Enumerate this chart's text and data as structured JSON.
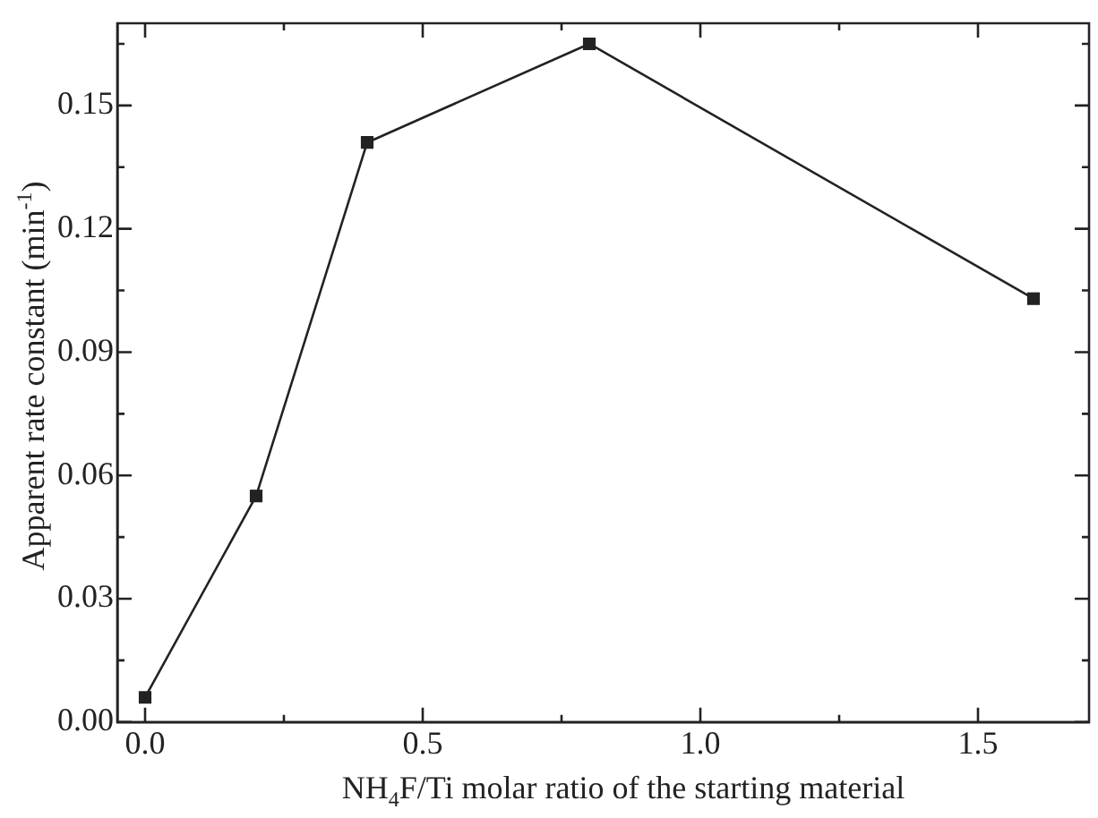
{
  "chart_data": {
    "type": "line",
    "xlabel": "NH$_{4}$F/Ti molar ratio of the starting material",
    "ylabel": "Apparent rate constant (min$^{-1}$)",
    "x": [
      0,
      0.2,
      0.4,
      0.8,
      1.6
    ],
    "series": [
      {
        "color": "#222222",
        "values": [
          0.006,
          0.055,
          0.141,
          0.165,
          0.103
        ]
      }
    ],
    "xlim": [
      -0.05,
      1.7
    ],
    "xticks": [
      {
        "value": 0,
        "label": "0.0"
      },
      {
        "value": 0.25,
        "label": null
      },
      {
        "value": 0.5,
        "label": "0.5"
      },
      {
        "value": 0.75,
        "label": null
      },
      {
        "value": 1,
        "label": "1.0"
      },
      {
        "value": 1.25,
        "label": null
      },
      {
        "value": 1.5,
        "label": "1.5"
      }
    ],
    "ylim": [
      0,
      0.17
    ],
    "yticks": [
      {
        "value": 0,
        "label": "0.00"
      },
      {
        "value": 0.015,
        "label": null
      },
      {
        "value": 0.03,
        "label": "0.03"
      },
      {
        "value": 0.045,
        "label": null
      },
      {
        "value": 0.06,
        "label": "0.06"
      },
      {
        "value": 0.075,
        "label": null
      },
      {
        "value": 0.09,
        "label": "0.09"
      },
      {
        "value": 0.105,
        "label": null
      },
      {
        "value": 0.12,
        "label": "0.12"
      },
      {
        "value": 0.135,
        "label": null
      },
      {
        "value": 0.15,
        "label": "0.15"
      },
      {
        "value": 0.165,
        "label": null
      }
    ],
    "marker": "square",
    "line_style": "solid",
    "grid": false,
    "legend": false
  }
}
